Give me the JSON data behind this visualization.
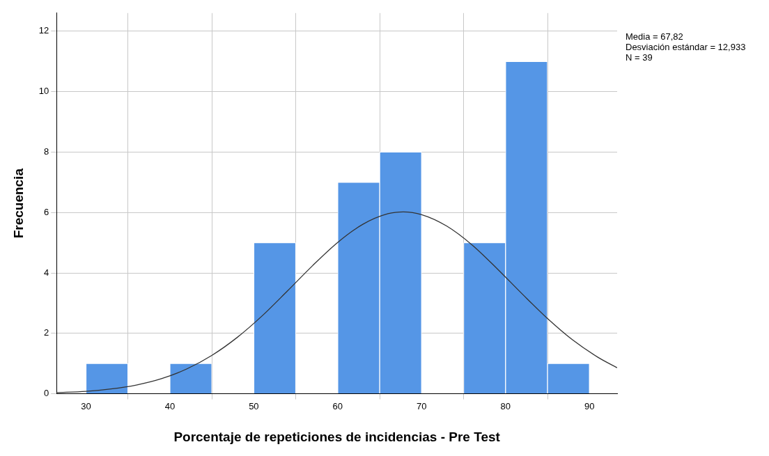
{
  "chart_data": {
    "type": "histogram",
    "xlabel": "Porcentaje de repeticiones de incidencias - Pre Test",
    "ylabel": "Frecuencia",
    "annotations": [
      "Media = 67,82",
      "Desviación estándar = 12,933",
      "N = 39"
    ],
    "series": [
      {
        "color": "#5596e6",
        "bins": [
          30,
          35,
          40,
          45,
          50,
          55,
          60,
          65,
          70,
          75,
          80,
          85,
          90
        ],
        "values": [
          1,
          0,
          1,
          0,
          5,
          0,
          7,
          8,
          0,
          5,
          11,
          1
        ]
      },
      {
        "type": "line",
        "color": "#333333",
        "x": [
          26.5,
          30,
          33,
          36,
          39,
          42,
          45,
          48,
          51,
          54,
          57,
          60,
          63,
          66,
          67.82,
          70,
          73,
          76,
          79,
          82,
          85,
          88,
          91,
          93.3
        ],
        "values": [
          0.04,
          0.08,
          0.16,
          0.29,
          0.5,
          0.82,
          1.27,
          1.86,
          2.58,
          3.4,
          4.24,
          5.01,
          5.61,
          5.96,
          6.02,
          5.93,
          5.55,
          4.93,
          4.14,
          3.3,
          2.49,
          1.78,
          1.21,
          0.86
        ]
      }
    ],
    "marker": "none",
    "xlim": [
      26.5,
      93.3
    ],
    "ylim": [
      0,
      12.6
    ],
    "xticks": [
      30,
      40,
      50,
      60,
      70,
      80,
      90
    ],
    "yticks": [
      0,
      2,
      4,
      6,
      8,
      10,
      12
    ],
    "grid": true,
    "legend": false
  }
}
